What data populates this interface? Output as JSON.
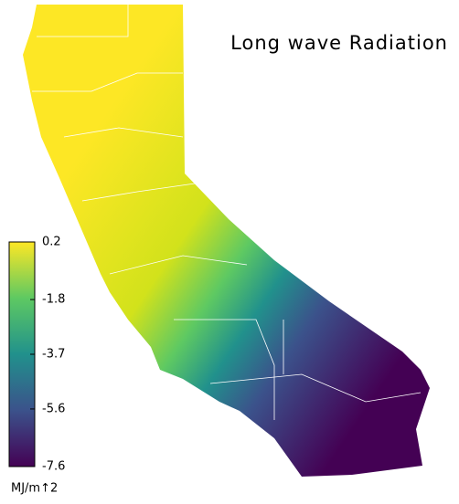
{
  "title": "Long wave Radiation",
  "colorbar": {
    "range": [
      -7.6,
      0.2
    ],
    "ticks": [
      0.2,
      -1.8,
      -3.7,
      -5.6,
      -7.6
    ],
    "label": "MJ/m↑2",
    "colors": [
      "#440154",
      "#3b528b",
      "#21918c",
      "#5ec962",
      "#fde725"
    ]
  }
}
